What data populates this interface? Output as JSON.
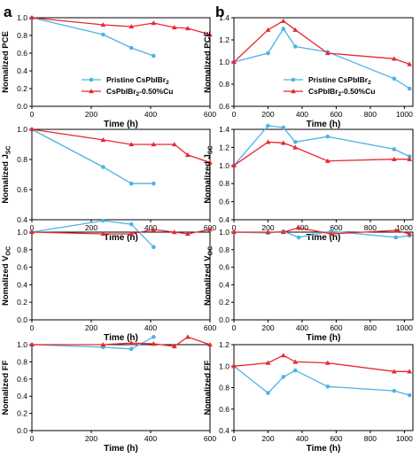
{
  "colors": {
    "pristine": "#4db3e6",
    "cu": "#e8282e"
  },
  "panel_labels": [
    "a",
    "b"
  ],
  "legend": {
    "entries": [
      "Pristine CsPbIBr2",
      "CsPbIBr2-0.50%Cu"
    ]
  },
  "chart_data": [
    {
      "type": "line",
      "panel": "a",
      "xlabel": "Time (h)",
      "ylabel": "Nomalized PCE",
      "xlim": [
        0,
        600
      ],
      "ylim": [
        0.0,
        1.0
      ],
      "xticks": [
        0,
        200,
        400,
        600
      ],
      "yticks": [
        0.0,
        0.2,
        0.4,
        0.6,
        0.8,
        1.0
      ],
      "legend_placement": "bottom-left",
      "series": [
        {
          "name": "Pristine CsPbIBr2",
          "x": [
            0,
            240,
            335,
            410
          ],
          "y": [
            1.0,
            0.81,
            0.66,
            0.57
          ]
        },
        {
          "name": "CsPbIBr2-0.50%Cu",
          "x": [
            0,
            240,
            335,
            410,
            480,
            525,
            600
          ],
          "y": [
            1.0,
            0.92,
            0.9,
            0.94,
            0.89,
            0.88,
            0.81
          ]
        }
      ]
    },
    {
      "type": "line",
      "panel": "b",
      "xlabel": "Time (h)",
      "ylabel": "Nomalized PCE",
      "xlim": [
        0,
        1050
      ],
      "ylim": [
        0.6,
        1.4
      ],
      "xticks": [
        0,
        200,
        400,
        600,
        800,
        1000
      ],
      "yticks": [
        0.6,
        0.8,
        1.0,
        1.2,
        1.4
      ],
      "legend_placement": "bottom-left",
      "series": [
        {
          "name": "Pristine CsPbIBr2",
          "x": [
            0,
            200,
            290,
            360,
            550,
            940,
            1030
          ],
          "y": [
            1.0,
            1.08,
            1.3,
            1.14,
            1.09,
            0.85,
            0.76
          ]
        },
        {
          "name": "CsPbIBr2-0.50%Cu",
          "x": [
            0,
            200,
            290,
            360,
            550,
            940,
            1030
          ],
          "y": [
            1.0,
            1.29,
            1.37,
            1.29,
            1.08,
            1.03,
            0.98
          ]
        }
      ]
    },
    {
      "type": "line",
      "panel": "a",
      "xlabel": "Time (h)",
      "ylabel": "Nomalized J_SC",
      "xlim": [
        0,
        600
      ],
      "ylim": [
        0.4,
        1.0
      ],
      "xticks": [
        0,
        200,
        400,
        600
      ],
      "yticks": [
        0.4,
        0.6,
        0.8,
        1.0
      ],
      "series": [
        {
          "x": [
            0,
            240,
            335,
            410
          ],
          "y": [
            1.0,
            0.75,
            0.64,
            0.64
          ]
        },
        {
          "x": [
            0,
            240,
            335,
            410,
            480,
            525,
            600
          ],
          "y": [
            1.0,
            0.93,
            0.9,
            0.9,
            0.9,
            0.83,
            0.78
          ]
        }
      ]
    },
    {
      "type": "line",
      "panel": "b",
      "xlabel": "Time (h)",
      "ylabel": "Nomalized J_SC",
      "xlim": [
        0,
        1050
      ],
      "ylim": [
        0.4,
        1.4
      ],
      "xticks": [
        0,
        200,
        400,
        600,
        800,
        1000
      ],
      "yticks": [
        0.4,
        0.6,
        0.8,
        1.0,
        1.2,
        1.4
      ],
      "series": [
        {
          "x": [
            0,
            200,
            290,
            360,
            550,
            940,
            1030
          ],
          "y": [
            1.0,
            1.44,
            1.42,
            1.26,
            1.32,
            1.18,
            1.1
          ]
        },
        {
          "x": [
            0,
            200,
            290,
            360,
            550,
            940,
            1030
          ],
          "y": [
            1.0,
            1.26,
            1.25,
            1.2,
            1.05,
            1.07,
            1.07
          ]
        }
      ]
    },
    {
      "type": "line",
      "panel": "a",
      "xlabel": "Time (h)",
      "ylabel": "Nomalized V_OC",
      "xlim": [
        0,
        600
      ],
      "ylim": [
        0.0,
        1.0
      ],
      "xticks": [
        0,
        200,
        400,
        600
      ],
      "yticks": [
        0.0,
        0.2,
        0.4,
        0.6,
        0.8,
        1.0
      ],
      "series": [
        {
          "x": [
            0,
            240,
            335,
            410
          ],
          "y": [
            1.0,
            1.13,
            1.09,
            0.83
          ]
        },
        {
          "x": [
            0,
            240,
            335,
            410,
            480,
            525,
            600
          ],
          "y": [
            1.0,
            0.98,
            0.98,
            1.03,
            1.0,
            0.98,
            1.03
          ]
        }
      ]
    },
    {
      "type": "line",
      "panel": "b",
      "xlabel": "Time (h)",
      "ylabel": "Nomalized V_OC",
      "xlim": [
        0,
        1050
      ],
      "ylim": [
        0.0,
        1.0
      ],
      "xticks": [
        0,
        200,
        400,
        600,
        800,
        1000
      ],
      "yticks": [
        0.0,
        0.2,
        0.4,
        0.6,
        0.8,
        1.0
      ],
      "series": [
        {
          "x": [
            0,
            200,
            290,
            380,
            570,
            950,
            1030
          ],
          "y": [
            1.0,
            0.99,
            1.01,
            0.94,
            1.01,
            0.94,
            0.96
          ]
        },
        {
          "x": [
            0,
            200,
            290,
            380,
            570,
            950,
            1030
          ],
          "y": [
            1.0,
            1.0,
            1.0,
            1.05,
            0.98,
            1.02,
            0.98
          ]
        }
      ]
    },
    {
      "type": "line",
      "panel": "a",
      "xlabel": "Time (h)",
      "ylabel": "Nomalized FF",
      "xlim": [
        0,
        600
      ],
      "ylim": [
        0.0,
        1.0
      ],
      "xticks": [
        0,
        200,
        400,
        600
      ],
      "yticks": [
        0.0,
        0.2,
        0.4,
        0.6,
        0.8,
        1.0
      ],
      "series": [
        {
          "x": [
            0,
            240,
            335,
            410
          ],
          "y": [
            1.0,
            0.97,
            0.95,
            1.09
          ]
        },
        {
          "x": [
            0,
            240,
            335,
            410,
            480,
            525,
            600
          ],
          "y": [
            1.0,
            1.0,
            1.02,
            1.01,
            0.98,
            1.09,
            1.0
          ]
        }
      ]
    },
    {
      "type": "line",
      "panel": "b",
      "xlabel": "Time (h)",
      "ylabel": "Nomalized FF",
      "xlim": [
        0,
        1050
      ],
      "ylim": [
        0.4,
        1.2
      ],
      "xticks": [
        0,
        200,
        400,
        600,
        800,
        1000
      ],
      "yticks": [
        0.4,
        0.6,
        0.8,
        1.0,
        1.2
      ],
      "series": [
        {
          "x": [
            0,
            200,
            290,
            360,
            550,
            940,
            1030
          ],
          "y": [
            1.0,
            0.75,
            0.9,
            0.96,
            0.81,
            0.77,
            0.73
          ]
        },
        {
          "x": [
            0,
            200,
            290,
            360,
            550,
            940,
            1030
          ],
          "y": [
            1.0,
            1.03,
            1.1,
            1.04,
            1.03,
            0.95,
            0.95
          ]
        }
      ]
    }
  ]
}
